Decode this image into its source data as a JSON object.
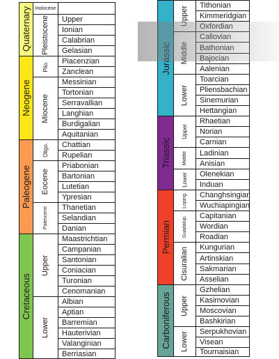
{
  "left_column": {
    "periods": [
      {
        "name": "Quaternary",
        "color": "#f9f97f"
      },
      {
        "name": "Neogene",
        "color": "#ffe619"
      },
      {
        "name": "Paleogene",
        "color": "#fd9a52"
      },
      {
        "name": "Cretaceous",
        "color": "#7fc64e"
      }
    ],
    "epochs": [
      "Holocene",
      "Pleistocene",
      "Plio.",
      "Miocene",
      "Oligo.",
      "Eocene",
      "Paleocene",
      "Upper",
      "Lower"
    ],
    "stages": [
      "Upper",
      "Ionian",
      "Calabrian",
      "Gelasian",
      "Piacenzian",
      "Zanclean",
      "Messinian",
      "Tortonian",
      "Serravallian",
      "Langhian",
      "Burdigalian",
      "Aquitanian",
      "Chattian",
      "Rupelian",
      "Priabonian",
      "Bartonian",
      "Lutetian",
      "Ypresian",
      "Thanetian",
      "Selandian",
      "Danian",
      "Maastrichtian",
      "Campanian",
      "Santonian",
      "Coniacian",
      "Turonian",
      "Cenomanian",
      "Albian",
      "Aptian",
      "Barremian",
      "Hauterivian",
      "Valanginian",
      "Berriasian"
    ]
  },
  "right_column": {
    "periods": [
      {
        "name": "Jurassic",
        "color": "#34b2c9"
      },
      {
        "name": "Triassic",
        "color": "#812b92"
      },
      {
        "name": "Permian",
        "color": "#f04028"
      },
      {
        "name": "Carboniferous",
        "color": "#67a599"
      }
    ],
    "epochs": [
      "Upper",
      "Middle",
      "Lower",
      "Upper",
      "Middle",
      "Lower",
      "Loping.",
      "Guadalup.",
      "Cisuralian",
      "Upper",
      "Lower"
    ],
    "stages": [
      "Tithonian",
      "Kimmeridgian",
      "Oxfordian",
      "Callovian",
      "Bathonian",
      "Bajocian",
      "Aalenian",
      "Toarcian",
      "Pliensbachian",
      "Sinemurian",
      "Hettangian",
      "Rhaetian",
      "Norian",
      "Carnian",
      "Ladinian",
      "Anisian",
      "Olenekian",
      "Induan",
      "Changhsingian",
      "Wuchiapingian",
      "Capitanian",
      "Wordian",
      "Roadian",
      "Kungurian",
      "Artinskian",
      "Sakmarian",
      "Asselian",
      "Gzhelian",
      "Kasimovian",
      "Moscovian",
      "Bashkirian",
      "Serpukhovian",
      "Visean",
      "Tournaisian"
    ]
  },
  "highlight": {
    "color": "#8c8c8c"
  }
}
